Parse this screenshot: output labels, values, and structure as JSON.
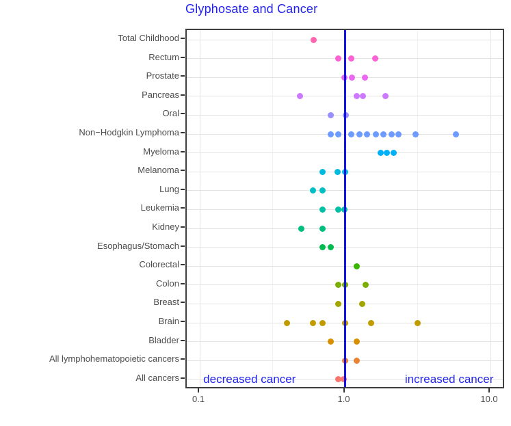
{
  "chart_data": {
    "type": "scatter",
    "subtype": "horizontal-dot-plot",
    "title": "Glyphosate and Cancer",
    "title_color": "#2222ee",
    "xlabel": "",
    "ylabel": "",
    "grid": "on",
    "legend": "none",
    "x_axis": {
      "scale": "log10",
      "tick_values": [
        0.1,
        1.0,
        10.0
      ],
      "tick_labels": [
        "0.1",
        "1.0",
        "10.0"
      ],
      "minor_gridlines": [
        0.3162,
        3.162
      ],
      "range": [
        0.082,
        12.8
      ]
    },
    "reference_line": {
      "x": 1.0,
      "color": "#1212e8"
    },
    "annotations": [
      {
        "text": "decreased cancer",
        "x": 0.22,
        "category": "All cancers",
        "color": "#2222ee"
      },
      {
        "text": "increased cancer",
        "x": 5.2,
        "category": "All cancers",
        "color": "#2222ee"
      }
    ],
    "series": [
      {
        "name": "Total Childhood",
        "color": "#FF65AF",
        "values": [
          0.61
        ]
      },
      {
        "name": "Rectum",
        "color": "#FC61D5",
        "values": [
          0.9,
          1.1,
          1.61
        ]
      },
      {
        "name": "Prostate",
        "color": "#EB69F0",
        "values": [
          0.99,
          1.11,
          1.37
        ]
      },
      {
        "name": "Pancreas",
        "color": "#CC79FF",
        "values": [
          0.49,
          1.2,
          1.32,
          1.9
        ]
      },
      {
        "name": "Oral",
        "color": "#9B8EFF",
        "values": [
          0.8,
          1.01
        ]
      },
      {
        "name": "Non−Hodgkin Lymphoma",
        "color": "#6E9BFF",
        "values": [
          0.8,
          0.9,
          1.1,
          1.26,
          1.41,
          1.62,
          1.83,
          2.1,
          2.32,
          3.05,
          5.8
        ]
      },
      {
        "name": "Myeloma",
        "color": "#00B0F6",
        "values": [
          1.75,
          1.94,
          2.15
        ]
      },
      {
        "name": "Melanoma",
        "color": "#00BAE0",
        "values": [
          0.7,
          0.89,
          1.0
        ]
      },
      {
        "name": "Lung",
        "color": "#00BFC4",
        "values": [
          0.6,
          0.7
        ]
      },
      {
        "name": "Leukemia",
        "color": "#00C1A3",
        "values": [
          0.7,
          0.9,
          0.99
        ]
      },
      {
        "name": "Kidney",
        "color": "#00BF7D",
        "values": [
          0.5,
          0.7
        ]
      },
      {
        "name": "Esophagus/Stomach",
        "color": "#00BB4E",
        "values": [
          0.7,
          0.8
        ]
      },
      {
        "name": "Colorectal",
        "color": "#39B600",
        "values": [
          1.2
        ]
      },
      {
        "name": "Colon",
        "color": "#7CAE00",
        "values": [
          0.9,
          1.0,
          1.39
        ]
      },
      {
        "name": "Breast",
        "color": "#A3A500",
        "values": [
          0.9,
          1.31
        ]
      },
      {
        "name": "Brain",
        "color": "#C09B00",
        "values": [
          0.4,
          0.6,
          0.7,
          1.0,
          1.51,
          3.15
        ]
      },
      {
        "name": "Bladder",
        "color": "#D89000",
        "values": [
          0.8,
          1.2
        ]
      },
      {
        "name": "All lymphohematopoietic cancers",
        "color": "#EA8331",
        "values": [
          1.0,
          1.2
        ]
      },
      {
        "name": "All cancers",
        "color": "#F8766D",
        "values": [
          0.9,
          0.98
        ]
      }
    ]
  }
}
